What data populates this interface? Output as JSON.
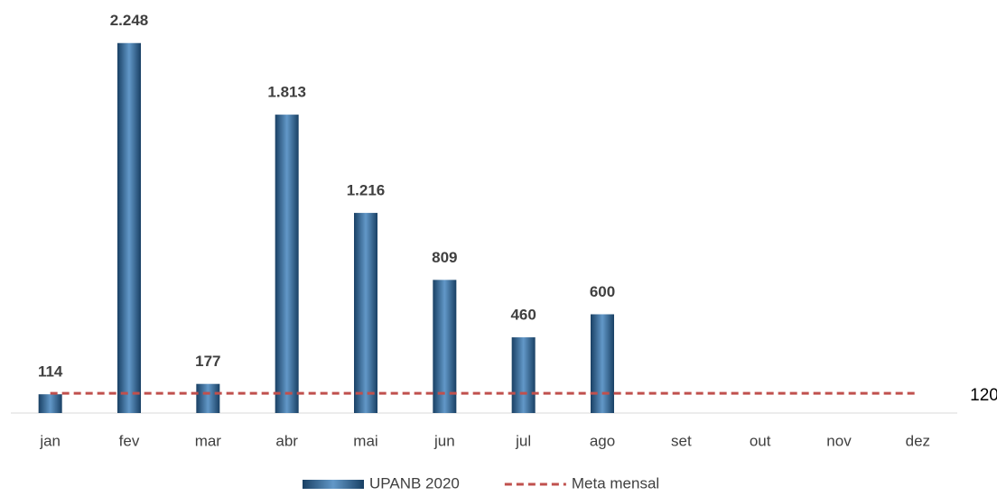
{
  "chart_data": {
    "type": "bar",
    "categories": [
      "jan",
      "fev",
      "mar",
      "abr",
      "mai",
      "jun",
      "jul",
      "ago",
      "set",
      "out",
      "nov",
      "dez"
    ],
    "series": [
      {
        "name": "UPANB 2020",
        "color": "#2e75b6",
        "values": [
          114,
          2248,
          177,
          1813,
          1216,
          809,
          460,
          600,
          null,
          null,
          null,
          null
        ],
        "value_labels": [
          "114",
          "2.248",
          "177",
          "1.813",
          "1.216",
          "809",
          "460",
          "600",
          null,
          null,
          null,
          null
        ]
      },
      {
        "name": "Meta mensal",
        "type": "line",
        "color": "#c0504d",
        "dashed": true,
        "values": [
          120,
          120,
          120,
          120,
          120,
          120,
          120,
          120,
          120,
          120,
          120,
          120
        ]
      }
    ],
    "ylim": [
      0,
      2400
    ],
    "legend": "bottom"
  }
}
